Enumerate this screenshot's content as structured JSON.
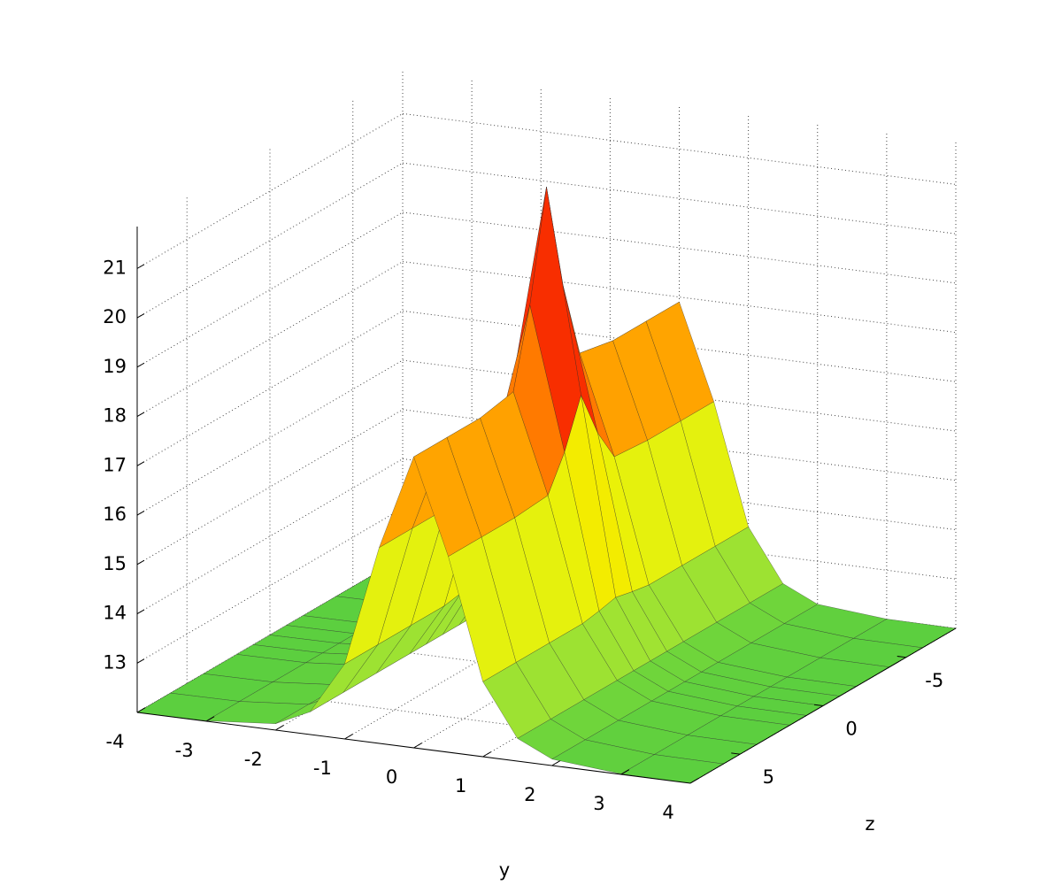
{
  "chart_data": {
    "type": "surface",
    "x_label": "y",
    "y_label": "z",
    "xlim": [
      -4,
      4
    ],
    "ylim": [
      -8,
      8
    ],
    "zlim": [
      12,
      21.85
    ],
    "xticks": [
      -4,
      -3,
      -2,
      -1,
      0,
      1,
      2,
      3,
      4
    ],
    "yticks": [
      -5,
      0,
      5
    ],
    "zticks": [
      13,
      14,
      15,
      16,
      17,
      18,
      19,
      20,
      21
    ],
    "grid": true,
    "colormap": [
      "#5ccf3f",
      "#c8ee2a",
      "#f2f200",
      "#ffa500",
      "#ff3c00",
      "#e00000",
      "#700000"
    ],
    "edge_color": "#2a2a2a",
    "x": [
      -4,
      -3,
      -2,
      -1.5,
      -1,
      -0.5,
      0,
      0.5,
      1,
      1.5,
      2,
      3,
      4
    ],
    "y": [
      -8,
      -6,
      -4,
      -2,
      -1,
      0,
      1,
      2,
      4,
      6,
      8
    ],
    "values": [
      [
        12.0,
        12.01,
        12.13,
        12.46,
        13.52,
        15.97,
        17.9,
        15.97,
        13.52,
        12.46,
        12.13,
        12.01,
        12.0
      ],
      [
        12.0,
        12.01,
        12.13,
        12.46,
        13.52,
        15.97,
        17.9,
        15.97,
        13.52,
        12.46,
        12.13,
        12.01,
        12.0
      ],
      [
        12.0,
        12.01,
        12.13,
        12.46,
        13.52,
        15.97,
        17.9,
        15.97,
        13.52,
        12.46,
        12.13,
        12.01,
        12.0
      ],
      [
        12.0,
        12.01,
        12.13,
        12.46,
        13.52,
        16.03,
        18.04,
        16.03,
        13.52,
        12.46,
        12.13,
        12.01,
        12.0
      ],
      [
        12.0,
        12.01,
        12.13,
        12.46,
        13.58,
        16.71,
        19.6,
        16.71,
        13.58,
        12.46,
        12.13,
        12.01,
        12.0
      ],
      [
        12.0,
        12.01,
        12.13,
        12.46,
        13.66,
        17.67,
        21.8,
        17.67,
        13.66,
        12.46,
        12.13,
        12.01,
        12.0
      ],
      [
        12.0,
        12.01,
        12.13,
        12.46,
        13.58,
        16.71,
        19.6,
        16.71,
        13.58,
        12.46,
        12.13,
        12.01,
        12.0
      ],
      [
        12.0,
        12.01,
        12.13,
        12.46,
        13.52,
        16.03,
        18.04,
        16.03,
        13.52,
        12.46,
        12.13,
        12.01,
        12.0
      ],
      [
        12.0,
        12.01,
        12.13,
        12.46,
        13.52,
        15.97,
        17.9,
        15.97,
        13.52,
        12.46,
        12.13,
        12.01,
        12.0
      ],
      [
        12.0,
        12.01,
        12.13,
        12.46,
        13.52,
        15.97,
        17.9,
        15.97,
        13.52,
        12.46,
        12.13,
        12.01,
        12.0
      ],
      [
        12.0,
        12.01,
        12.13,
        12.46,
        13.52,
        15.97,
        17.9,
        15.97,
        13.52,
        12.46,
        12.13,
        12.01,
        12.0
      ]
    ]
  }
}
